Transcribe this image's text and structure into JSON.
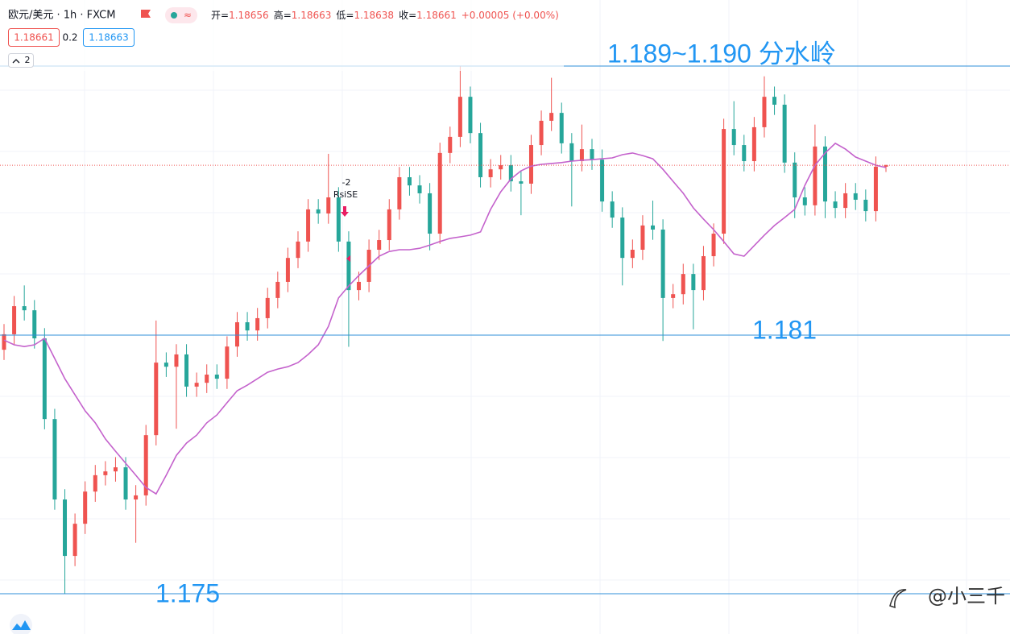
{
  "chart_data": {
    "type": "candlestick",
    "symbol": "欧元/美元 · 1h · FXCM",
    "ohlc_legend": [
      {
        "label": "开=",
        "value": "1.18656"
      },
      {
        "label": "高=",
        "value": "1.18663"
      },
      {
        "label": "低=",
        "value": "1.18638"
      },
      {
        "label": "收=",
        "value": "1.18661"
      },
      {
        "label": "",
        "value": "+0.00005 (+0.00%)"
      }
    ],
    "bid": "1.18661",
    "spread": "0.2",
    "ask": "1.18663",
    "indicator_count": "2",
    "signal": {
      "value": "-2",
      "label": "RsiSE"
    },
    "annotations": [
      "1.189~1.190 分水岭",
      "1.181",
      "1.175"
    ],
    "watermark": "@小三千",
    "ylim": [
      1.17058,
      1.19226
    ],
    "up_color": "#ef5350",
    "down_color": "#26a69a",
    "ma_color": "#c462cc",
    "last_price_color": "#ef5350",
    "open": [
      1.1803,
      1.18083,
      1.18179,
      1.18165,
      1.18069,
      1.17793,
      1.17518,
      1.17325,
      1.17435,
      1.17545,
      1.17601,
      1.17614,
      1.17628,
      1.17518,
      1.17532,
      1.17738,
      1.17986,
      1.17972,
      1.18014,
      1.17904,
      1.17917,
      1.17945,
      1.17931,
      1.18041,
      1.18124,
      1.18096,
      1.18138,
      1.18207,
      1.18262,
      1.18344,
      1.184,
      1.1851,
      1.18496,
      1.18551,
      1.184,
      1.18234,
      1.18262,
      1.18372,
      1.18405,
      1.1851,
      1.1862,
      1.18592,
      1.18565,
      1.18427,
      1.18703,
      1.18758,
      1.18895,
      1.18771,
      1.1862,
      1.18647,
      1.18661,
      1.18606,
      1.18598,
      1.1873,
      1.18813,
      1.1884,
      1.18736,
      1.18675,
      1.18716,
      1.1868,
      1.18537,
      1.18482,
      1.18344,
      1.18372,
      1.18455,
      1.18441,
      1.18207,
      1.1822,
      1.18289,
      1.18234,
      1.1835,
      1.18427,
      1.18785,
      1.1873,
      1.18675,
      1.18791,
      1.18895,
      1.18868,
      1.1867,
      1.18551,
      1.18524,
      1.18725,
      1.18537,
      1.18515,
      1.18565,
      1.18543,
      1.18504,
      1.18656
    ],
    "high": [
      1.18118,
      1.18214,
      1.1825,
      1.182,
      1.18104,
      1.17828,
      1.17553,
      1.1747,
      1.1758,
      1.17636,
      1.17649,
      1.17663,
      1.17663,
      1.17567,
      1.17773,
      1.1813,
      1.18021,
      1.18049,
      1.18049,
      1.17952,
      1.1798,
      1.1798,
      1.18076,
      1.18159,
      1.18159,
      1.18173,
      1.18242,
      1.18297,
      1.18379,
      1.18435,
      1.18545,
      1.18545,
      1.187,
      1.18586,
      1.18435,
      1.18297,
      1.18407,
      1.1844,
      1.18545,
      1.18655,
      1.18655,
      1.18627,
      1.186,
      1.18738,
      1.18793,
      1.18999,
      1.1893,
      1.18806,
      1.18682,
      1.18696,
      1.18696,
      1.18641,
      1.18765,
      1.18848,
      1.1896,
      1.18875,
      1.18771,
      1.188,
      1.18751,
      1.18715,
      1.18572,
      1.18517,
      1.18407,
      1.1849,
      1.1854,
      1.18476,
      1.18255,
      1.18324,
      1.18324,
      1.18385,
      1.18462,
      1.1882,
      1.1888,
      1.18765,
      1.18826,
      1.18965,
      1.1893,
      1.18903,
      1.18705,
      1.18586,
      1.188,
      1.1876,
      1.18572,
      1.186,
      1.186,
      1.18578,
      1.18691,
      1.18663
    ],
    "low": [
      1.17995,
      1.18048,
      1.1813,
      1.18034,
      1.17758,
      1.17483,
      1.17196,
      1.1729,
      1.174,
      1.1751,
      1.17566,
      1.17579,
      1.17483,
      1.1737,
      1.17497,
      1.17703,
      1.17937,
      1.1776,
      1.17869,
      1.17869,
      1.17882,
      1.17896,
      1.17896,
      1.18006,
      1.18061,
      1.18061,
      1.18103,
      1.18172,
      1.18227,
      1.18309,
      1.18365,
      1.18461,
      1.18461,
      1.18365,
      1.1804,
      1.18199,
      1.18227,
      1.18337,
      1.1837,
      1.18475,
      1.18557,
      1.1853,
      1.1837,
      1.18392,
      1.18668,
      1.18723,
      1.18736,
      1.18585,
      1.18585,
      1.18612,
      1.18571,
      1.1849,
      1.18563,
      1.18695,
      1.18778,
      1.18701,
      1.1852,
      1.1864,
      1.18645,
      1.18502,
      1.18447,
      1.1825,
      1.18309,
      1.18337,
      1.18406,
      1.1806,
      1.18172,
      1.18185,
      1.181,
      1.18199,
      1.18315,
      1.18392,
      1.18695,
      1.1864,
      1.1864,
      1.18756,
      1.18833,
      1.18635,
      1.1848,
      1.18489,
      1.18489,
      1.1848,
      1.1848,
      1.1848,
      1.18508,
      1.18469,
      1.18469,
      1.18638
    ],
    "close": [
      1.18083,
      1.18179,
      1.18165,
      1.18069,
      1.17793,
      1.17518,
      1.17325,
      1.17435,
      1.17545,
      1.17601,
      1.17614,
      1.17628,
      1.17518,
      1.17532,
      1.17738,
      1.17986,
      1.17972,
      1.18014,
      1.17904,
      1.17917,
      1.17945,
      1.17931,
      1.18041,
      1.18124,
      1.18096,
      1.18138,
      1.18207,
      1.18262,
      1.18344,
      1.184,
      1.1851,
      1.18496,
      1.18551,
      1.184,
      1.18234,
      1.18262,
      1.18372,
      1.18405,
      1.1851,
      1.1862,
      1.18592,
      1.18565,
      1.18427,
      1.18703,
      1.18758,
      1.18895,
      1.18771,
      1.1862,
      1.18647,
      1.18661,
      1.18606,
      1.18598,
      1.1873,
      1.18813,
      1.1884,
      1.18736,
      1.18675,
      1.18716,
      1.1868,
      1.18537,
      1.18482,
      1.18344,
      1.18372,
      1.18455,
      1.18441,
      1.18207,
      1.1822,
      1.18289,
      1.18234,
      1.1835,
      1.18427,
      1.18785,
      1.1873,
      1.18675,
      1.18791,
      1.18895,
      1.18868,
      1.1867,
      1.18551,
      1.18524,
      1.18725,
      1.18537,
      1.18515,
      1.18565,
      1.18543,
      1.18504,
      1.18656,
      1.18661
    ],
    "ma": [
      1.18063,
      1.18047,
      1.18041,
      1.18047,
      1.18069,
      1.18,
      1.17931,
      1.17876,
      1.17821,
      1.1778,
      1.17725,
      1.17683,
      1.17642,
      1.17601,
      1.17559,
      1.17537,
      1.17601,
      1.17669,
      1.17711,
      1.17738,
      1.1778,
      1.17807,
      1.17849,
      1.1789,
      1.17909,
      1.17931,
      1.17953,
      1.17964,
      1.17972,
      1.17986,
      1.18014,
      1.18047,
      1.1811,
      1.18207,
      1.18248,
      1.18284,
      1.18317,
      1.1835,
      1.18366,
      1.18372,
      1.18372,
      1.18377,
      1.18388,
      1.184,
      1.18411,
      1.18416,
      1.18422,
      1.18433,
      1.1851,
      1.1857,
      1.18614,
      1.18642,
      1.18658,
      1.18664,
      1.18667,
      1.1867,
      1.18675,
      1.18678,
      1.1868,
      1.18683,
      1.18686,
      1.18697,
      1.18703,
      1.18694,
      1.18683,
      1.18647,
      1.18606,
      1.18565,
      1.18515,
      1.18477,
      1.18441,
      1.184,
      1.18358,
      1.1835,
      1.18386,
      1.18422,
      1.18455,
      1.18482,
      1.1851,
      1.18592,
      1.18661,
      1.18703,
      1.18736,
      1.18716,
      1.18689,
      1.18675,
      1.18661,
      1.18653
    ]
  }
}
